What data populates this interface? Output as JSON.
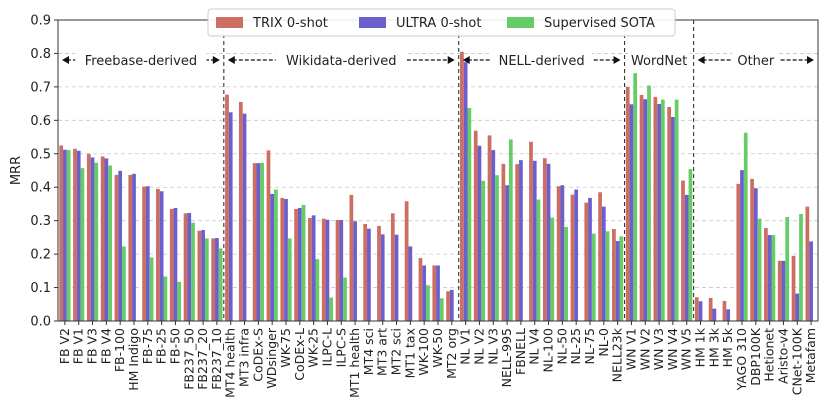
{
  "chart_data": {
    "type": "bar",
    "title": "",
    "xlabel": "",
    "ylabel": "MRR",
    "ylim": [
      0,
      0.9
    ],
    "yticks": [
      "0.0",
      "0.1",
      "0.2",
      "0.3",
      "0.4",
      "0.5",
      "0.6",
      "0.7",
      "0.8",
      "0.9"
    ],
    "grid": "horizontal dashed",
    "legend_position": "top-center",
    "colors": {
      "trix": "#cd6e62",
      "ultra": "#6a5fcc",
      "sota": "#66cc66"
    },
    "categories": [
      "FB V2",
      "FB V1",
      "FB V3",
      "FB V4",
      "FB-100",
      "HM Indigo",
      "FB-75",
      "FB-25",
      "FB-50",
      "FB237_50",
      "FB237_20",
      "FB237_10",
      "MT4 health",
      "MT3 infra",
      "CoDEx-S",
      "WDsinger",
      "WK-75",
      "CoDEx-L",
      "WK-25",
      "ILPC-L",
      "ILPC-S",
      "MT1 health",
      "MT4 sci",
      "MT3 art",
      "MT2 sci",
      "MT1 tax",
      "WK-100",
      "WK-50",
      "MT2 org",
      "NL V1",
      "NL V2",
      "NL V3",
      "NELL-995",
      "FBNELL",
      "NL V4",
      "NL-100",
      "NL-50",
      "NL-25",
      "NL-75",
      "NL-0",
      "NELL23k",
      "WN V1",
      "WN V2",
      "WN V3",
      "WN V4",
      "WN V5",
      "HM 1k",
      "HM 3k",
      "HM 5k",
      "YAGO 310",
      "DBP100K",
      "Hetionet",
      "Aristo-v4",
      "CNet-100K",
      "Metafam"
    ],
    "series": [
      {
        "name": "TRIX 0-shot",
        "values": [
          0.525,
          0.515,
          0.5,
          0.492,
          0.437,
          0.437,
          0.402,
          0.395,
          0.335,
          0.322,
          0.27,
          0.247,
          0.677,
          0.655,
          0.472,
          0.51,
          0.368,
          0.335,
          0.308,
          0.306,
          0.302,
          0.377,
          0.29,
          0.284,
          0.322,
          0.358,
          0.188,
          0.166,
          0.089,
          0.805,
          0.569,
          0.555,
          0.47,
          0.469,
          0.536,
          0.487,
          0.403,
          0.378,
          0.354,
          0.385,
          0.275,
          0.7,
          0.676,
          0.67,
          0.64,
          0.42,
          0.071,
          0.069,
          0.06,
          0.41,
          0.425,
          0.278,
          0.18,
          0.195,
          0.342
        ]
      },
      {
        "name": "ULTRA 0-shot",
        "values": [
          0.512,
          0.509,
          0.489,
          0.486,
          0.449,
          0.44,
          0.403,
          0.388,
          0.338,
          0.323,
          0.272,
          0.248,
          0.624,
          0.62,
          0.472,
          0.38,
          0.365,
          0.338,
          0.316,
          0.303,
          0.302,
          0.298,
          0.276,
          0.259,
          0.258,
          0.223,
          0.166,
          0.166,
          0.093,
          0.774,
          0.524,
          0.511,
          0.406,
          0.481,
          0.479,
          0.47,
          0.406,
          0.393,
          0.368,
          0.342,
          0.239,
          0.648,
          0.663,
          0.649,
          0.61,
          0.377,
          0.059,
          0.037,
          0.035,
          0.451,
          0.397,
          0.257,
          0.18,
          0.082,
          0.238
        ]
      },
      {
        "name": "Supervised SOTA",
        "values": [
          0.511,
          0.457,
          0.473,
          0.465,
          0.223,
          null,
          0.19,
          0.133,
          0.117,
          0.294,
          0.247,
          0.217,
          null,
          null,
          0.473,
          0.393,
          0.247,
          0.347,
          0.185,
          0.07,
          0.13,
          null,
          null,
          null,
          null,
          null,
          0.107,
          0.068,
          null,
          0.637,
          0.419,
          0.436,
          0.543,
          null,
          0.363,
          0.309,
          0.281,
          null,
          0.261,
          0.268,
          0.253,
          0.741,
          0.704,
          0.662,
          0.662,
          0.454,
          null,
          null,
          null,
          0.563,
          0.306,
          0.257,
          0.311,
          0.32,
          null
        ]
      }
    ],
    "groups": [
      {
        "label": "Freebase-derived",
        "start": 0,
        "end": 11
      },
      {
        "label": "Wikidata-derived",
        "start": 12,
        "end": 28
      },
      {
        "label": "NELL-derived",
        "start": 29,
        "end": 40
      },
      {
        "label": "WordNet",
        "start": 41,
        "end": 45
      },
      {
        "label": "Other",
        "start": 46,
        "end": 54
      }
    ]
  }
}
